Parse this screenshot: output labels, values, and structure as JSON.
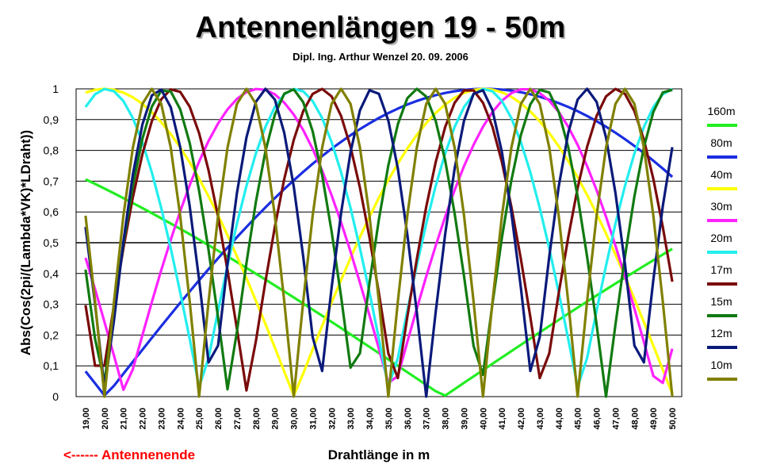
{
  "chart_data": {
    "type": "line",
    "title": "Antennenlängen 19 - 50m",
    "subtitle": "Dipl. Ing. Arthur Wenzel  20. 09. 2006",
    "xlabel": "Drahtlänge in m",
    "ylabel": "Abs(Cos(2pi/(Lambda*VK)*LDraht))",
    "annotation": "<------  Antennenende",
    "x_range": [
      19,
      50
    ],
    "x_step": 0.5,
    "ylim": [
      0,
      1
    ],
    "x_ticks": [
      "19,00",
      "20,00",
      "21,00",
      "22,00",
      "23,00",
      "24,00",
      "25,00",
      "26,00",
      "27,00",
      "28,00",
      "29,00",
      "30,00",
      "31,00",
      "32,00",
      "33,00",
      "34,00",
      "35,00",
      "36,00",
      "37,00",
      "38,00",
      "39,00",
      "40,00",
      "41,00",
      "42,00",
      "43,00",
      "44,00",
      "45,00",
      "46,00",
      "47,00",
      "48,00",
      "49,00",
      "50,00"
    ],
    "y_ticks": [
      "0",
      "0,1",
      "0,2",
      "0,3",
      "0,4",
      "0,5",
      "0,6",
      "0,7",
      "0,8",
      "0,9",
      "1"
    ],
    "grid": true,
    "legend_position": "right",
    "series": [
      {
        "name": "160m",
        "color": "#22ee22",
        "zeros": [
          37.92
        ],
        "period": 75.84
      },
      {
        "name": "80m",
        "color": "#1a2ee0",
        "zeros": [
          20.05
        ],
        "period": 40.1
      },
      {
        "name": "40m",
        "color": "#ffff00",
        "zeros": [
          30.02
        ],
        "period": 20.04
      },
      {
        "name": "30m",
        "color": "#ff22ff",
        "zeros": [
          21.1
        ],
        "period": 14.1
      },
      {
        "name": "20m",
        "color": "#22eeee",
        "zeros": [
          25.1
        ],
        "period": 10.0
      },
      {
        "name": "17m",
        "color": "#7a0a0a",
        "zeros": [
          19.75
        ],
        "period": 7.8
      },
      {
        "name": "15m",
        "color": "#117a11",
        "zeros": [
          19.9
        ],
        "period": 6.65
      },
      {
        "name": "12m",
        "color": "#0a1a7a",
        "zeros": [
          20.05
        ],
        "period": 5.65
      },
      {
        "name": "10m",
        "color": "#808000",
        "zeros": [
          20.0
        ],
        "period": 5.0
      }
    ]
  }
}
